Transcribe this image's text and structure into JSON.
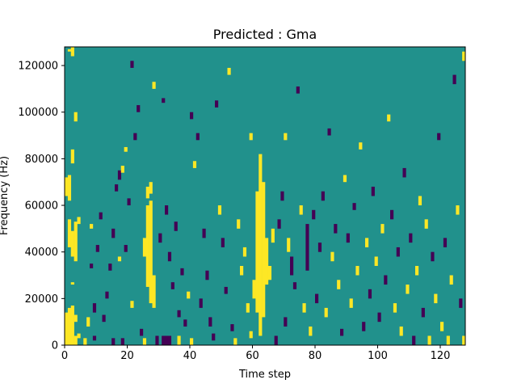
{
  "chart_data": {
    "type": "heatmap",
    "title": "Predicted : Gma",
    "xlabel": "Time step",
    "ylabel": "Frequency (Hz)",
    "xlim": [
      0,
      128
    ],
    "ylim": [
      0,
      128000
    ],
    "xticks": [
      0,
      20,
      40,
      60,
      80,
      100,
      120
    ],
    "xtick_labels": [
      "0",
      "20",
      "40",
      "60",
      "80",
      "100",
      "120"
    ],
    "yticks": [
      0,
      20000,
      40000,
      60000,
      80000,
      100000,
      120000
    ],
    "ytick_labels": [
      "0",
      "20000",
      "40000",
      "60000",
      "80000",
      "100000",
      "120000"
    ],
    "n_time_steps": 128,
    "n_freq_bins": 128,
    "bin_width_hz": 1000,
    "colormap": {
      "background_value": 0.5,
      "values": [
        0,
        0.5,
        1
      ],
      "colors": [
        "#440154",
        "#21918c",
        "#fde725"
      ]
    },
    "cells": [
      [
        0,
        0,
        14,
        1
      ],
      [
        1,
        0,
        16,
        1
      ],
      [
        2,
        0,
        17,
        1
      ],
      [
        3,
        0,
        4,
        1
      ],
      [
        3,
        10,
        13,
        1
      ],
      [
        4,
        3,
        5,
        1
      ],
      [
        2,
        26,
        27,
        1
      ],
      [
        1,
        42,
        54,
        1
      ],
      [
        2,
        38,
        49,
        1
      ],
      [
        3,
        36,
        53,
        1
      ],
      [
        0,
        64,
        72,
        1
      ],
      [
        1,
        62,
        73,
        1
      ],
      [
        1,
        126,
        127,
        1
      ],
      [
        2,
        124,
        128,
        1
      ],
      [
        3,
        96,
        100,
        1
      ],
      [
        2,
        78,
        84,
        1
      ],
      [
        4,
        52,
        55,
        1
      ],
      [
        6,
        0,
        3,
        1
      ],
      [
        7,
        8,
        12,
        1
      ],
      [
        8,
        50,
        52,
        1
      ],
      [
        9,
        14,
        18,
        0
      ],
      [
        9,
        2,
        4,
        0
      ],
      [
        8,
        33,
        35,
        0
      ],
      [
        10,
        40,
        43,
        0
      ],
      [
        11,
        54,
        57,
        0
      ],
      [
        12,
        10,
        13,
        0
      ],
      [
        13,
        20,
        23,
        0
      ],
      [
        14,
        32,
        35,
        0
      ],
      [
        15,
        0,
        3,
        0
      ],
      [
        15,
        46,
        50,
        0
      ],
      [
        16,
        66,
        69,
        0
      ],
      [
        17,
        71,
        75,
        0
      ],
      [
        17,
        36,
        38,
        1
      ],
      [
        18,
        74,
        77,
        1
      ],
      [
        19,
        83,
        85,
        1
      ],
      [
        18,
        0,
        3,
        0
      ],
      [
        19,
        40,
        43,
        0
      ],
      [
        20,
        60,
        63,
        0
      ],
      [
        21,
        119,
        122,
        0
      ],
      [
        22,
        88,
        91,
        0
      ],
      [
        21,
        16,
        19,
        1
      ],
      [
        23,
        100,
        103,
        0
      ],
      [
        24,
        4,
        7,
        0
      ],
      [
        25,
        0,
        3,
        1
      ],
      [
        25,
        38,
        46,
        1
      ],
      [
        26,
        25,
        60,
        1
      ],
      [
        27,
        18,
        62,
        1
      ],
      [
        28,
        16,
        30,
        1
      ],
      [
        26,
        63,
        68,
        1
      ],
      [
        27,
        65,
        70,
        1
      ],
      [
        28,
        110,
        113,
        1
      ],
      [
        29,
        0,
        4,
        0
      ],
      [
        30,
        44,
        48,
        0
      ],
      [
        31,
        0,
        4,
        0
      ],
      [
        31,
        104,
        106,
        0
      ],
      [
        32,
        0,
        4,
        0
      ],
      [
        32,
        56,
        60,
        0
      ],
      [
        33,
        0,
        4,
        0
      ],
      [
        33,
        36,
        40,
        0
      ],
      [
        34,
        24,
        27,
        0
      ],
      [
        35,
        49,
        53,
        0
      ],
      [
        36,
        0,
        4,
        1
      ],
      [
        36,
        12,
        15,
        0
      ],
      [
        37,
        30,
        33,
        0
      ],
      [
        38,
        8,
        11,
        0
      ],
      [
        39,
        20,
        23,
        1
      ],
      [
        40,
        0,
        3,
        1
      ],
      [
        40,
        97,
        100,
        0
      ],
      [
        41,
        76,
        79,
        1
      ],
      [
        42,
        88,
        91,
        0
      ],
      [
        43,
        16,
        20,
        0
      ],
      [
        44,
        46,
        50,
        0
      ],
      [
        45,
        28,
        32,
        0
      ],
      [
        46,
        8,
        12,
        0
      ],
      [
        47,
        2,
        5,
        0
      ],
      [
        48,
        102,
        105,
        0
      ],
      [
        49,
        56,
        60,
        1
      ],
      [
        50,
        42,
        46,
        0
      ],
      [
        51,
        22,
        25,
        0
      ],
      [
        52,
        116,
        119,
        1
      ],
      [
        53,
        6,
        9,
        0
      ],
      [
        54,
        0,
        3,
        1
      ],
      [
        55,
        50,
        54,
        1
      ],
      [
        56,
        30,
        34,
        1
      ],
      [
        57,
        38,
        42,
        1
      ],
      [
        58,
        14,
        18,
        1
      ],
      [
        59,
        3,
        6,
        1
      ],
      [
        59,
        88,
        91,
        1
      ],
      [
        60,
        20,
        28,
        1
      ],
      [
        61,
        14,
        66,
        1
      ],
      [
        62,
        4,
        82,
        1
      ],
      [
        63,
        12,
        70,
        1
      ],
      [
        64,
        26,
        46,
        1
      ],
      [
        65,
        28,
        34,
        1
      ],
      [
        66,
        44,
        50,
        1
      ],
      [
        67,
        0,
        4,
        0
      ],
      [
        68,
        50,
        54,
        0
      ],
      [
        69,
        62,
        66,
        0
      ],
      [
        70,
        8,
        12,
        0
      ],
      [
        70,
        88,
        91,
        1
      ],
      [
        71,
        40,
        46,
        1
      ],
      [
        72,
        30,
        38,
        0
      ],
      [
        73,
        24,
        27,
        0
      ],
      [
        74,
        108,
        111,
        0
      ],
      [
        75,
        56,
        60,
        1
      ],
      [
        76,
        14,
        18,
        1
      ],
      [
        77,
        32,
        52,
        0
      ],
      [
        78,
        4,
        8,
        1
      ],
      [
        79,
        54,
        58,
        0
      ],
      [
        80,
        18,
        22,
        0
      ],
      [
        81,
        40,
        44,
        0
      ],
      [
        82,
        62,
        66,
        0
      ],
      [
        83,
        12,
        16,
        1
      ],
      [
        84,
        90,
        93,
        0
      ],
      [
        85,
        36,
        40,
        1
      ],
      [
        86,
        48,
        52,
        0
      ],
      [
        87,
        24,
        28,
        1
      ],
      [
        88,
        4,
        7,
        0
      ],
      [
        89,
        70,
        73,
        1
      ],
      [
        90,
        44,
        48,
        0
      ],
      [
        91,
        16,
        20,
        1
      ],
      [
        92,
        58,
        61,
        0
      ],
      [
        93,
        30,
        34,
        1
      ],
      [
        94,
        84,
        87,
        1
      ],
      [
        95,
        6,
        10,
        0
      ],
      [
        96,
        42,
        46,
        1
      ],
      [
        97,
        20,
        24,
        0
      ],
      [
        98,
        64,
        68,
        0
      ],
      [
        99,
        34,
        38,
        1
      ],
      [
        100,
        10,
        14,
        0
      ],
      [
        101,
        48,
        52,
        1
      ],
      [
        102,
        26,
        30,
        0
      ],
      [
        103,
        96,
        99,
        1
      ],
      [
        104,
        54,
        58,
        0
      ],
      [
        105,
        14,
        18,
        1
      ],
      [
        106,
        38,
        42,
        0
      ],
      [
        107,
        4,
        8,
        1
      ],
      [
        108,
        72,
        76,
        0
      ],
      [
        109,
        22,
        26,
        1
      ],
      [
        110,
        44,
        48,
        0
      ],
      [
        111,
        0,
        4,
        0
      ],
      [
        112,
        30,
        34,
        1
      ],
      [
        113,
        60,
        64,
        1
      ],
      [
        114,
        12,
        16,
        0
      ],
      [
        115,
        50,
        54,
        1
      ],
      [
        116,
        0,
        4,
        1
      ],
      [
        117,
        36,
        40,
        0
      ],
      [
        118,
        18,
        22,
        1
      ],
      [
        119,
        88,
        91,
        0
      ],
      [
        120,
        6,
        10,
        1
      ],
      [
        121,
        42,
        46,
        0
      ],
      [
        122,
        0,
        4,
        1
      ],
      [
        123,
        26,
        30,
        1
      ],
      [
        124,
        112,
        116,
        0
      ],
      [
        125,
        56,
        60,
        1
      ],
      [
        126,
        16,
        20,
        0
      ],
      [
        127,
        0,
        4,
        1
      ],
      [
        127,
        122,
        126,
        1
      ]
    ]
  }
}
